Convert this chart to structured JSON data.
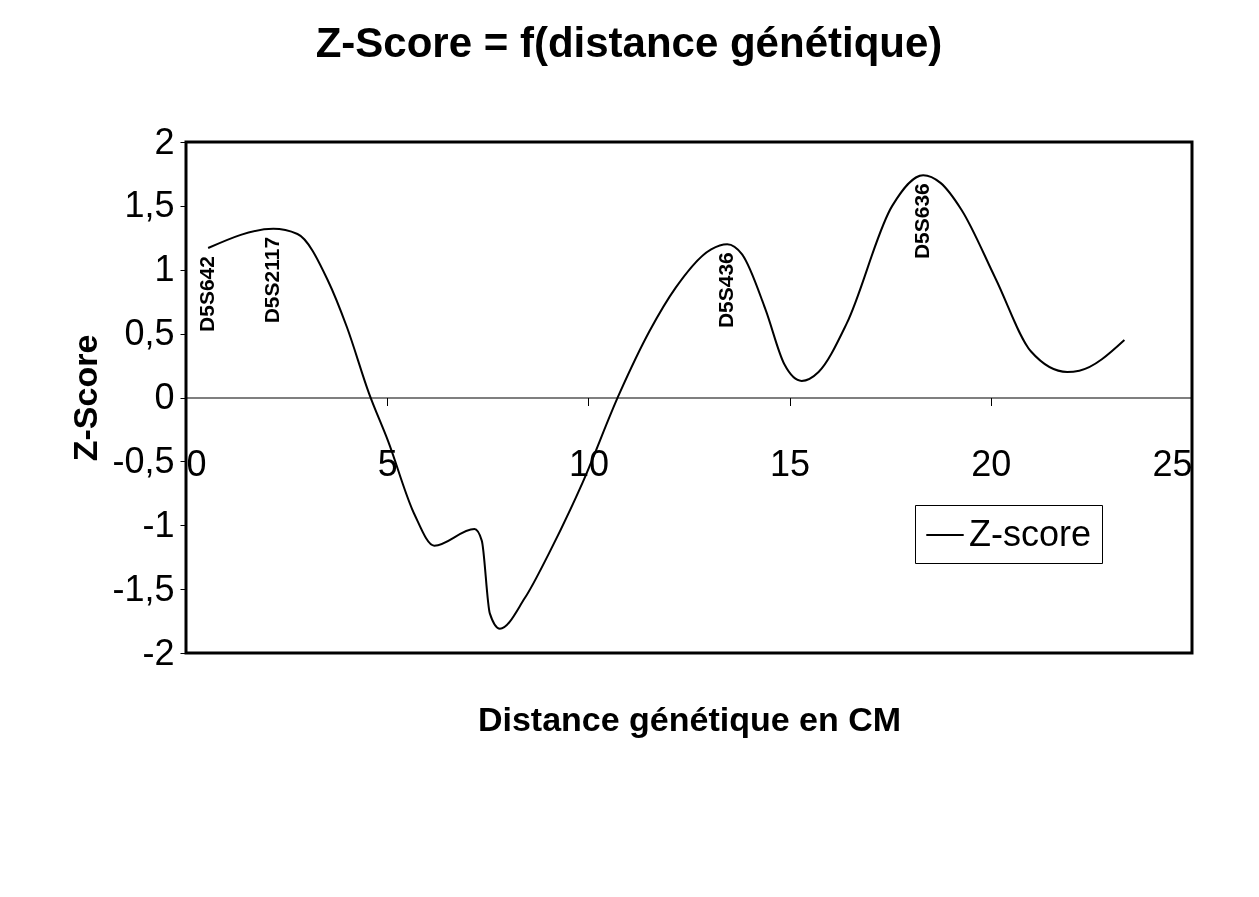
{
  "chart_data": {
    "type": "line",
    "title": "Z-Score = f(distance génétique)",
    "xlabel": "Distance génétique en CM",
    "ylabel": "Z-Score",
    "x": [
      0.55,
      2.17,
      2.77,
      3.52,
      4.0,
      4.55,
      5.02,
      5.67,
      6.17,
      7.17,
      7.35,
      7.55,
      7.8,
      8.42,
      9.02,
      9.85,
      10.77,
      11.52,
      12.17,
      13.05,
      13.45,
      13.82,
      14.4,
      14.87,
      15.3,
      15.72,
      16.42,
      17.55,
      18.32,
      18.75,
      19.27,
      20.12,
      21.0,
      21.9,
      22.2,
      23.32
    ],
    "series": [
      {
        "name": "Z-score",
        "color": "#000000",
        "values": [
          1.17,
          1.32,
          1.28,
          0.92,
          0.55,
          0.03,
          -0.34,
          -0.91,
          -1.16,
          -1.03,
          -1.12,
          -1.69,
          -1.81,
          -1.57,
          -1.22,
          -0.67,
          0.03,
          0.52,
          0.86,
          1.16,
          1.2,
          1.12,
          0.69,
          0.26,
          0.13,
          0.2,
          0.58,
          1.5,
          1.74,
          1.68,
          1.47,
          0.93,
          0.36,
          0.2,
          0.21,
          0.45
        ]
      }
    ],
    "xlim": [
      0,
      25
    ],
    "xticks": [
      0,
      5,
      10,
      15,
      20,
      25
    ],
    "ylim": [
      -2,
      2
    ],
    "yticks": [
      -2,
      {
        "value": -1.5,
        "label": "-1,5"
      },
      -1,
      {
        "value": -0.5,
        "label": "-0,5"
      },
      0,
      {
        "value": 0.5,
        "label": "0,5"
      },
      1,
      {
        "value": 1.5,
        "label": "1,5"
      },
      2
    ],
    "annotations": [
      {
        "text": "D5S642",
        "x": 0.55,
        "y": 1.17
      },
      {
        "text": "D5S2117",
        "x": 2.17,
        "y": 1.32
      },
      {
        "text": "D5S436",
        "x": 13.45,
        "y": 1.2
      },
      {
        "text": "D5S636",
        "x": 18.32,
        "y": 1.74
      }
    ],
    "legend": "bottom right",
    "marker": "none",
    "line_style": "solid",
    "grid": false
  }
}
